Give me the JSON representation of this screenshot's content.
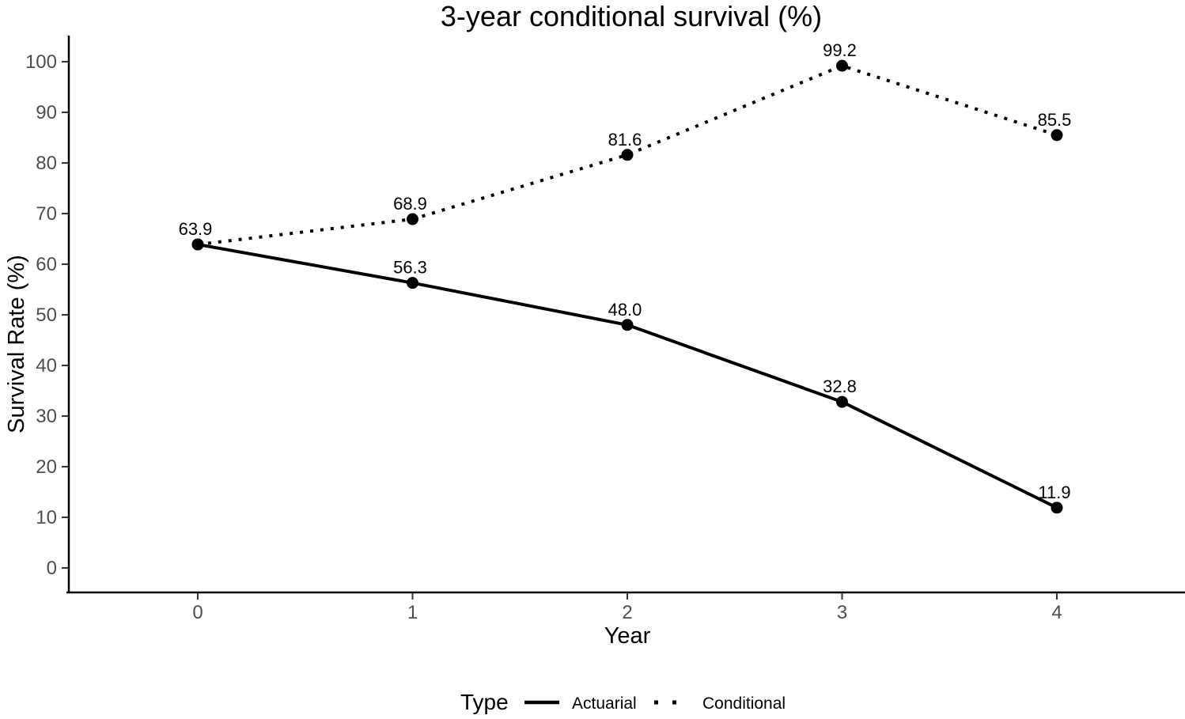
{
  "chart_data": {
    "type": "line",
    "title": "3-year conditional survival (%)",
    "xlabel": "Year",
    "ylabel": "Survival Rate (%)",
    "x": [
      0,
      1,
      2,
      3,
      4
    ],
    "xticks": [
      0,
      1,
      2,
      3,
      4
    ],
    "yticks": [
      0,
      10,
      20,
      30,
      40,
      50,
      60,
      70,
      80,
      90,
      100
    ],
    "xlim": [
      0,
      4
    ],
    "ylim": [
      0,
      105
    ],
    "grid": false,
    "legend": {
      "title": "Type",
      "position": "bottom",
      "entries": [
        "Actuarial",
        "Conditional"
      ]
    },
    "series": [
      {
        "name": "Actuarial",
        "linestyle": "solid",
        "color": "#000000",
        "values": [
          63.9,
          56.3,
          48.0,
          32.8,
          11.9
        ],
        "labels": [
          "63.9",
          "56.3",
          "48.0",
          "32.8",
          "11.9"
        ]
      },
      {
        "name": "Conditional",
        "linestyle": "dotted",
        "color": "#000000",
        "values": [
          63.9,
          68.9,
          81.6,
          99.2,
          85.5
        ],
        "labels": [
          null,
          "68.9",
          "81.6",
          "99.2",
          "85.5"
        ]
      }
    ],
    "colors": {
      "line": "#000000",
      "tick_label": "#4d4d4d",
      "axis": "#000000",
      "background": "#ffffff"
    }
  }
}
